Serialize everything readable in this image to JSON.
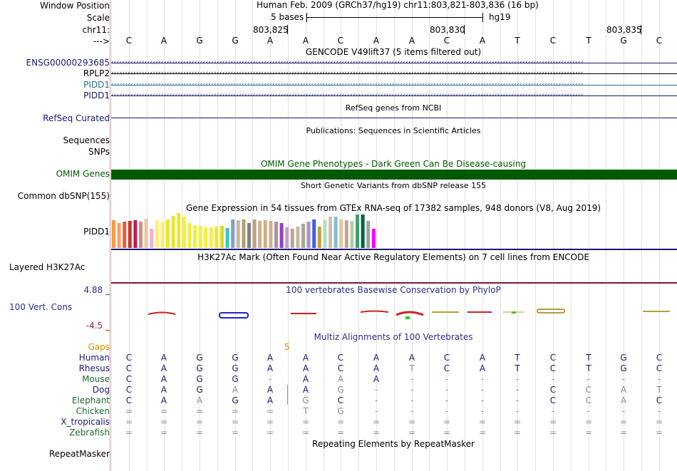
{
  "header": {
    "window_position_label": "Window Position",
    "scale_label": "Scale",
    "chrom_label": "chr11:",
    "strand_label": "--->",
    "position_text": "Human Feb. 2009 (GRCh37/hg19)   chr11:803,821-803,836 (16 bp)",
    "scale_text": "5 bases",
    "assembly": "hg19",
    "ticks": [
      "803,825",
      "803,830",
      "803,835"
    ]
  },
  "bases": [
    "C",
    "A",
    "G",
    "G",
    "A",
    "A",
    "C",
    "A",
    "A",
    "C",
    "A",
    "T",
    "C",
    "T",
    "G",
    "C"
  ],
  "gencode": {
    "title": "GENCODE V49lift37 (5 items filtered out)",
    "items": [
      {
        "name": "ENSG00000293685",
        "color": "#1a1a6e",
        "y": 88
      },
      {
        "name": "RPLP2",
        "color": "#000000",
        "y": 103
      },
      {
        "name": "PIDD1",
        "color": "#2c6f9a",
        "y": 119
      },
      {
        "name": "PIDD1",
        "color": "#1a1a6e",
        "y": 134
      }
    ]
  },
  "refseq": {
    "label": "RefSeq Curated",
    "title": "RefSeq genes from NCBI",
    "color": "#1a1a6e"
  },
  "publications": {
    "label": "Sequences",
    "title": "Publications: Sequences in Scientific Articles"
  },
  "snps_label": "SNPs",
  "omim": {
    "label": "OMIM Genes",
    "title": "OMIM Gene Phenotypes - Dark Green Can Be Disease-causing",
    "color": "#005a00"
  },
  "dbsnp": {
    "label": "Common dbSNP(155)",
    "title": "Short Genetic Variants from dbSNP release 155"
  },
  "gtex": {
    "label": "PIDD1",
    "title": "Gene Expression in 54 tissues from GTEx RNA-seq of 17382 samples, 948 donors (V8, Aug 2019)",
    "values": [
      0.78,
      0.7,
      0.74,
      0.76,
      0.78,
      0.74,
      0.82,
      0.54,
      0.78,
      0.74,
      0.8,
      0.9,
      0.98,
      0.88,
      0.7,
      0.64,
      0.62,
      0.58,
      0.58,
      0.6,
      0.62,
      0.56,
      0.8,
      0.78,
      0.8,
      0.7,
      0.8,
      0.76,
      0.78,
      0.76,
      0.74,
      0.7,
      0.58,
      0.54,
      0.6,
      0.68,
      0.74,
      0.8,
      0.6,
      0.78,
      0.88,
      0.88,
      0.8,
      0.78,
      0.76,
      0.94,
      0.94,
      0.76,
      0.54
    ],
    "colors": [
      "#ff9a3c",
      "#ff9a6e",
      "#e55c3c",
      "#c0392b",
      "#c2185b",
      "#d09080",
      "#e8c8a0",
      "#ffaad2",
      "#fff06e",
      "#fff06e",
      "#e8e830",
      "#e8e830",
      "#e8e830",
      "#f0f040",
      "#f0f040",
      "#f0f040",
      "#f0f040",
      "#f0f040",
      "#f5f050",
      "#e8e830",
      "#d8d830",
      "#30c8d0",
      "#80a0c8",
      "#c8b8a0",
      "#b0a070",
      "#808080",
      "#c0a080",
      "#d0b090",
      "#d0b080",
      "#c8b090",
      "#b090a0",
      "#9040c0",
      "#c0a0d0",
      "#b8a890",
      "#c8b8a0",
      "#a8a890",
      "#a890d0",
      "#4060e0",
      "#c0a040",
      "#b0e0c0",
      "#d0c0b0",
      "#80c0d0",
      "#e0c8a0",
      "#c0a890",
      "#b0d0a8",
      "#40a070",
      "#006040",
      "#a0a0a0",
      "#ff00ff"
    ]
  },
  "h3k27ac": {
    "label": "Layered H3K27Ac",
    "title": "H3K27Ac Mark (Often Found Near Active Regulatory Elements) on 7 cell lines from ENCODE"
  },
  "conservation": {
    "label": "100 Vert. Cons",
    "max": "4.88 _",
    "min": "-4.5 _",
    "title": "100 vertebrates Basewise Conservation by PhyloP"
  },
  "multiz": {
    "title": "Multiz Alignments of 100 Vertebrates",
    "gaps_label": "Gaps",
    "gap_count": "5",
    "species": [
      {
        "name": "Human",
        "color": "#1a1a6e",
        "seq": [
          "C",
          "A",
          "G",
          "G",
          "A",
          "A",
          "C",
          "A",
          "A",
          "C",
          "A",
          "T",
          "C",
          "T",
          "G",
          "C"
        ]
      },
      {
        "name": "Rhesus",
        "color": "#1a1a6e",
        "seq": [
          "C",
          "A",
          "G",
          "G",
          "A",
          "A",
          "C",
          "A",
          "T",
          "C",
          "A",
          "T",
          "C",
          "T",
          "G",
          "C"
        ]
      },
      {
        "name": "Mouse",
        "color": "#1d6b2e",
        "seq": [
          "C",
          "A",
          "G",
          "G",
          "-",
          "A",
          "A",
          "A",
          "-",
          "-",
          "-",
          "-",
          "-",
          "-",
          "-",
          "-"
        ]
      },
      {
        "name": "Dog",
        "color": "#1a1a6e",
        "seq": [
          "C",
          "A",
          "G",
          "A",
          "A",
          "A",
          "G",
          "-",
          "-",
          "-",
          "-",
          "-",
          "C",
          "C",
          "A",
          "T"
        ]
      },
      {
        "name": "Elephant",
        "color": "#1d6b2e",
        "seq": [
          "C",
          "A",
          "A",
          "G",
          "A",
          "G",
          "C",
          "-",
          "-",
          "-",
          "-",
          "-",
          "C",
          "C",
          "A",
          "C"
        ]
      },
      {
        "name": "Chicken",
        "color": "#1d6b2e",
        "seq": [
          "=",
          "=",
          "=",
          "=",
          "=",
          "T",
          "G",
          "-",
          "-",
          "-",
          "-",
          "-",
          "-",
          "-",
          "-",
          "-"
        ]
      },
      {
        "name": "X_tropicalis",
        "color": "#1a1a6e",
        "seq": [
          "=",
          "=",
          "=",
          "=",
          "=",
          "=",
          "=",
          "=",
          "=",
          "=",
          "=",
          "=",
          "=",
          "=",
          "=",
          "="
        ]
      },
      {
        "name": "Zebrafish",
        "color": "#1d6b2e",
        "seq": [
          "=",
          "=",
          "=",
          "=",
          "=",
          "=",
          "=",
          "=",
          "=",
          "=",
          "=",
          "=",
          "=",
          "=",
          "=",
          "="
        ]
      }
    ]
  },
  "repeatmasker": {
    "label": "RepeatMasker",
    "title": "Repeating Elements by RepeatMasker"
  }
}
